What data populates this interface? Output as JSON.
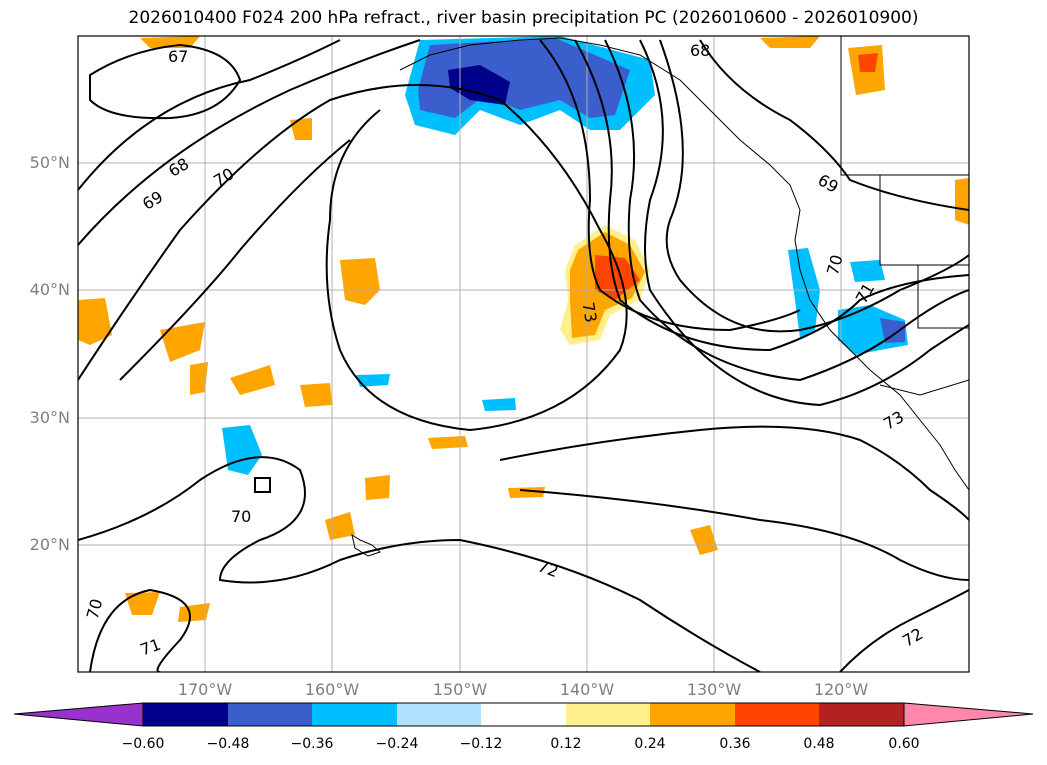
{
  "title": "2026010400 F024 200 hPa refract., river basin precipitation PC (2026010600 - 2026010900)",
  "lat_labels": [
    "50°N",
    "40°N",
    "30°N",
    "20°N"
  ],
  "lon_labels": [
    "170°W",
    "160°W",
    "150°W",
    "140°W",
    "130°W",
    "120°W"
  ],
  "contour_labels": [
    "67",
    "68",
    "69",
    "70",
    "68",
    "69",
    "70",
    "71",
    "73",
    "73",
    "70",
    "70",
    "71",
    "72",
    "72"
  ],
  "colorbar": {
    "tick_labels": [
      "−0.60",
      "−0.48",
      "−0.36",
      "−0.24",
      "−0.12",
      "0.12",
      "0.24",
      "0.36",
      "0.48",
      "0.60"
    ],
    "colors": [
      "#9932cc",
      "#00008b",
      "#3a5fcd",
      "#00bfff",
      "#b0e2ff",
      "#ffffff",
      "#fff08c",
      "#ffa500",
      "#ff4500",
      "#b22222",
      "#ff88aa"
    ]
  }
}
